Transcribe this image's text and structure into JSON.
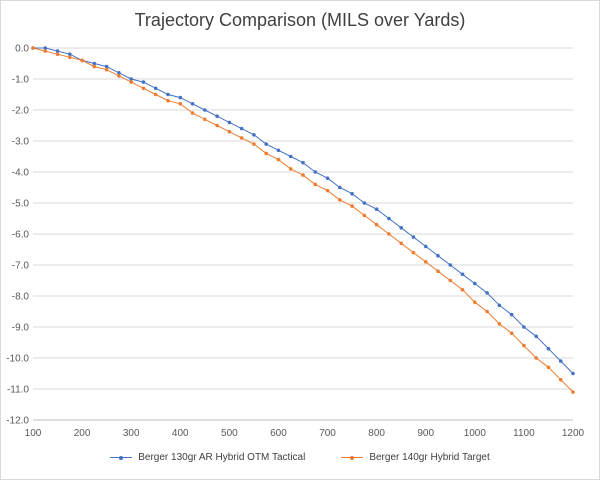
{
  "chart_data": {
    "type": "line",
    "title": "Trajectory Comparison (MILS over Yards)",
    "xlabel": "",
    "ylabel": "",
    "xlim": [
      100,
      1200
    ],
    "ylim": [
      -12,
      0
    ],
    "xticks": [
      100,
      200,
      300,
      400,
      500,
      600,
      700,
      800,
      900,
      1000,
      1100,
      1200
    ],
    "yticks": [
      0,
      -1,
      -2,
      -3,
      -4,
      -5,
      -6,
      -7,
      -8,
      -9,
      -10,
      -11,
      -12
    ],
    "grid": "horizontal",
    "legend_position": "bottom",
    "x": [
      100,
      125,
      150,
      175,
      200,
      225,
      250,
      275,
      300,
      325,
      350,
      375,
      400,
      425,
      450,
      475,
      500,
      525,
      550,
      575,
      600,
      625,
      650,
      675,
      700,
      725,
      750,
      775,
      800,
      825,
      850,
      875,
      900,
      925,
      950,
      975,
      1000,
      1025,
      1050,
      1075,
      1100,
      1125,
      1150,
      1175,
      1200
    ],
    "series": [
      {
        "name": "Berger 130gr AR Hybrid OTM Tactical",
        "color": "#4472c4",
        "values": [
          0,
          0,
          -0.1,
          -0.2,
          -0.4,
          -0.5,
          -0.6,
          -0.8,
          -1.0,
          -1.1,
          -1.3,
          -1.5,
          -1.6,
          -1.8,
          -2.0,
          -2.2,
          -2.4,
          -2.6,
          -2.8,
          -3.1,
          -3.3,
          -3.5,
          -3.7,
          -4.0,
          -4.2,
          -4.5,
          -4.7,
          -5.0,
          -5.2,
          -5.5,
          -5.8,
          -6.1,
          -6.4,
          -6.7,
          -7.0,
          -7.3,
          -7.6,
          -7.9,
          -8.3,
          -8.6,
          -9.0,
          -9.3,
          -9.7,
          -10.1,
          -10.5
        ]
      },
      {
        "name": "Berger 140gr Hybrid Target",
        "color": "#ed7d31",
        "values": [
          0,
          -0.1,
          -0.2,
          -0.3,
          -0.4,
          -0.6,
          -0.7,
          -0.9,
          -1.1,
          -1.3,
          -1.5,
          -1.7,
          -1.8,
          -2.1,
          -2.3,
          -2.5,
          -2.7,
          -2.9,
          -3.1,
          -3.4,
          -3.6,
          -3.9,
          -4.1,
          -4.4,
          -4.6,
          -4.9,
          -5.1,
          -5.4,
          -5.7,
          -6.0,
          -6.3,
          -6.6,
          -6.9,
          -7.2,
          -7.5,
          -7.8,
          -8.2,
          -8.5,
          -8.9,
          -9.2,
          -9.6,
          -10.0,
          -10.3,
          -10.7,
          -11.1
        ]
      }
    ]
  }
}
